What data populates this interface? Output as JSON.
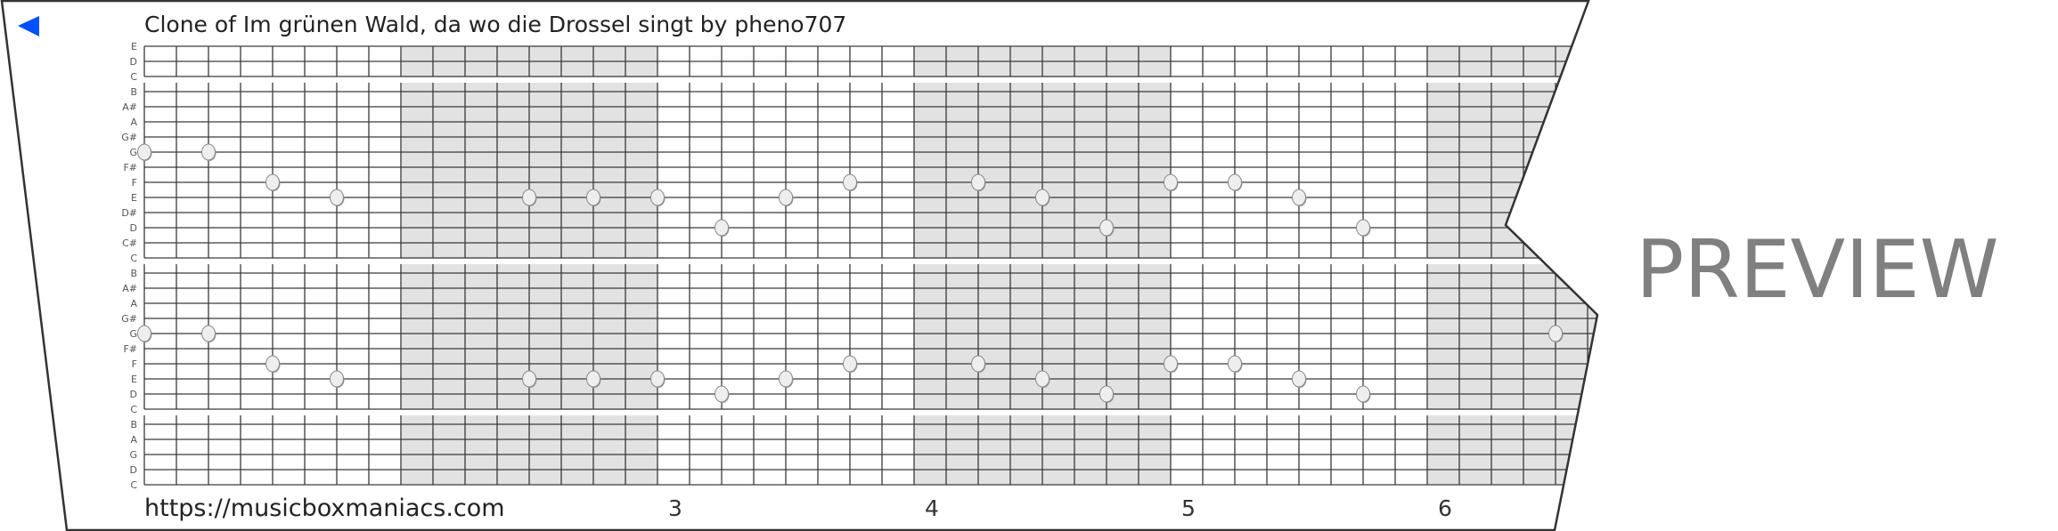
{
  "header": {
    "title": "Clone of Im grünen Wald, da wo die Drossel singt by pheno707",
    "back_icon": "back-triangle-icon",
    "accent_color": "#0050ff"
  },
  "footer": {
    "url": "https://musicboxmaniacs.com",
    "measure_numbers": [
      "3",
      "4",
      "5",
      "6"
    ]
  },
  "watermark": "PREVIEW",
  "row_labels": [
    "E",
    "D",
    "C",
    "B",
    "A#",
    "A",
    "G#",
    "G",
    "F#",
    "F",
    "E",
    "D#",
    "D",
    "C#",
    "C",
    "B",
    "A#",
    "A",
    "G#",
    "G",
    "F#",
    "F",
    "E",
    "D",
    "C",
    "B",
    "A",
    "G",
    "D",
    "C"
  ],
  "colors": {
    "shaded_measure": "#e2e2e2",
    "grid_line": "#3a3a3a",
    "note_fill": "#eeeeee",
    "note_stroke": "#888888",
    "watermark": "#808080"
  },
  "notes": [
    {
      "step": 0,
      "pitch": "G",
      "track": "upper"
    },
    {
      "step": 2,
      "pitch": "G",
      "track": "upper"
    },
    {
      "step": 4,
      "pitch": "F",
      "track": "upper"
    },
    {
      "step": 6,
      "pitch": "E",
      "track": "upper"
    },
    {
      "step": 12,
      "pitch": "E",
      "track": "upper"
    },
    {
      "step": 14,
      "pitch": "E",
      "track": "upper"
    },
    {
      "step": 16,
      "pitch": "E",
      "track": "upper"
    },
    {
      "step": 18,
      "pitch": "D",
      "track": "upper"
    },
    {
      "step": 20,
      "pitch": "E",
      "track": "upper"
    },
    {
      "step": 22,
      "pitch": "F",
      "track": "upper"
    },
    {
      "step": 26,
      "pitch": "F",
      "track": "upper"
    },
    {
      "step": 28,
      "pitch": "E",
      "track": "upper"
    },
    {
      "step": 30,
      "pitch": "D",
      "track": "upper"
    },
    {
      "step": 32,
      "pitch": "F",
      "track": "upper"
    },
    {
      "step": 34,
      "pitch": "F",
      "track": "upper"
    },
    {
      "step": 36,
      "pitch": "E",
      "track": "upper"
    },
    {
      "step": 38,
      "pitch": "D",
      "track": "upper"
    },
    {
      "step": 0,
      "pitch": "G",
      "track": "lower"
    },
    {
      "step": 2,
      "pitch": "G",
      "track": "lower"
    },
    {
      "step": 4,
      "pitch": "F",
      "track": "lower"
    },
    {
      "step": 6,
      "pitch": "E",
      "track": "lower"
    },
    {
      "step": 12,
      "pitch": "E",
      "track": "lower"
    },
    {
      "step": 14,
      "pitch": "E",
      "track": "lower"
    },
    {
      "step": 16,
      "pitch": "E",
      "track": "lower"
    },
    {
      "step": 18,
      "pitch": "D",
      "track": "lower"
    },
    {
      "step": 20,
      "pitch": "E",
      "track": "lower"
    },
    {
      "step": 22,
      "pitch": "F",
      "track": "lower"
    },
    {
      "step": 26,
      "pitch": "F",
      "track": "lower"
    },
    {
      "step": 28,
      "pitch": "E",
      "track": "lower"
    },
    {
      "step": 30,
      "pitch": "D",
      "track": "lower"
    },
    {
      "step": 32,
      "pitch": "F",
      "track": "lower"
    },
    {
      "step": 34,
      "pitch": "F",
      "track": "lower"
    },
    {
      "step": 36,
      "pitch": "E",
      "track": "lower"
    },
    {
      "step": 38,
      "pitch": "D",
      "track": "lower"
    },
    {
      "step": 44,
      "pitch": "G",
      "track": "lower"
    }
  ]
}
